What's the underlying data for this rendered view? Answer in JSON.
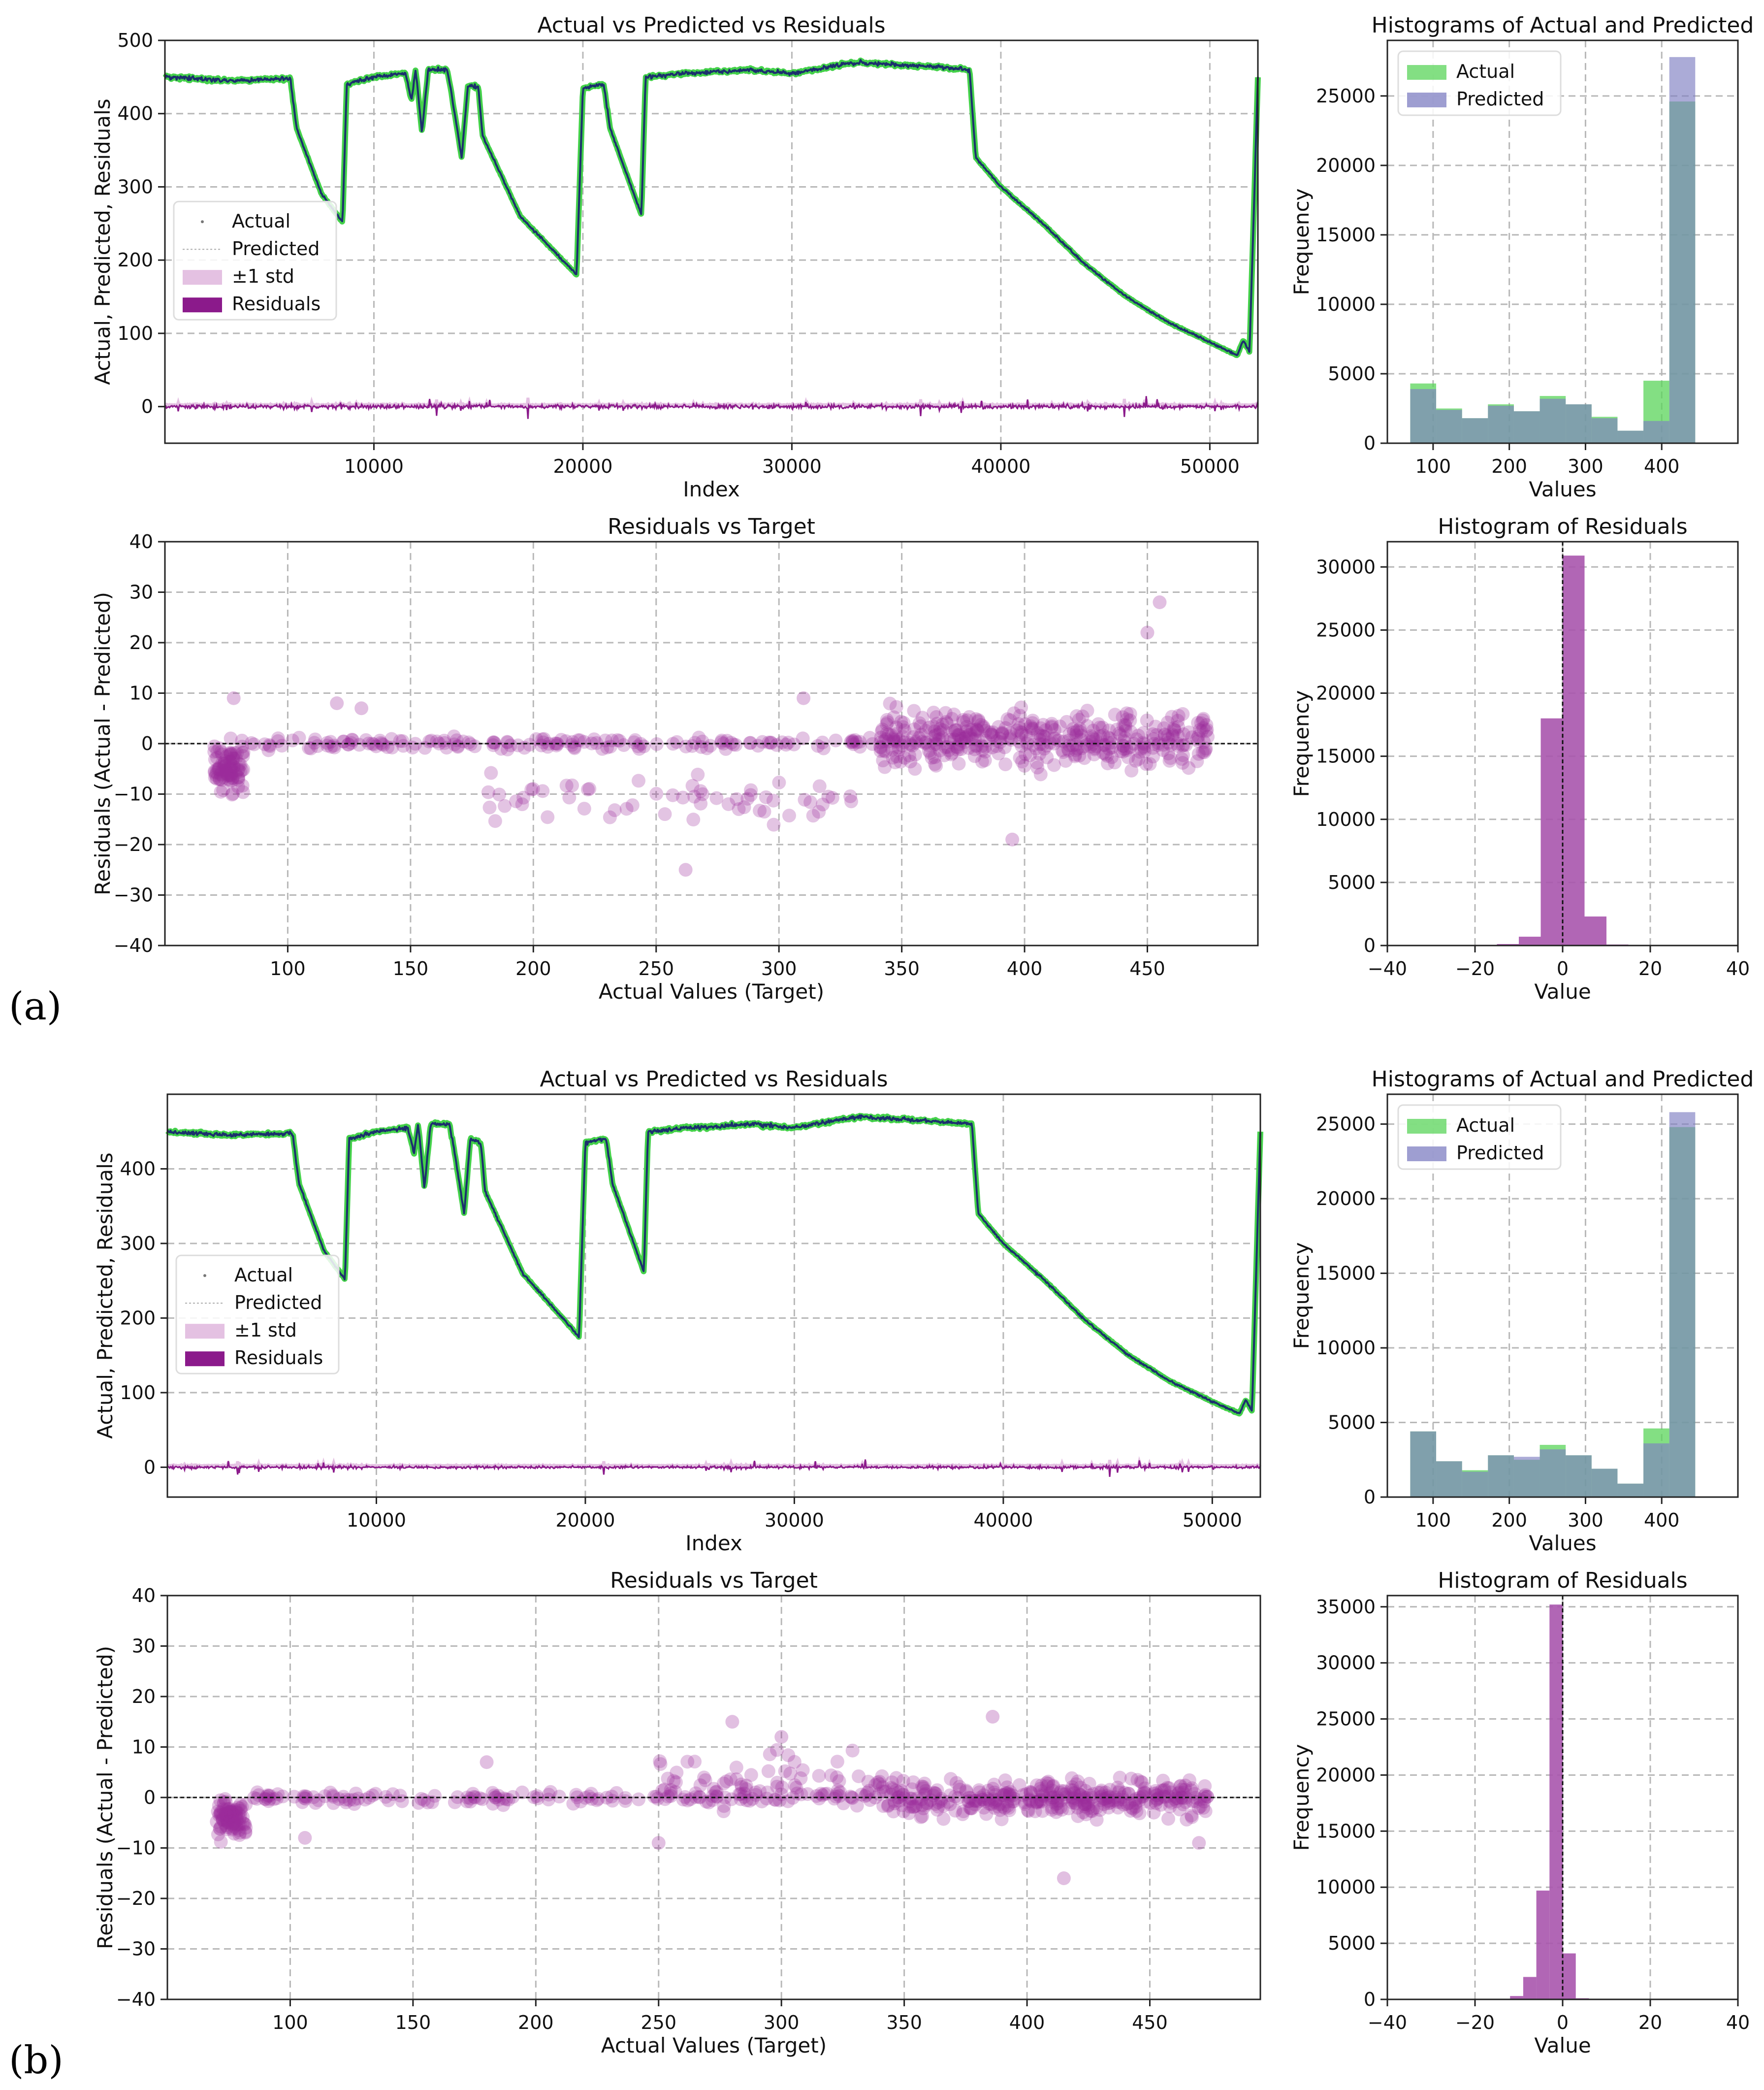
{
  "panel_labels": [
    "(a)",
    "(b)"
  ],
  "chart_data": [
    {
      "id": "a-series",
      "type": "line",
      "title": "Actual vs Predicted vs Residuals",
      "xlabel": "Index",
      "ylabel": "Actual, Predicted, Residuals",
      "xlim": [
        0,
        52300
      ],
      "ylim": [
        -50,
        500
      ],
      "xticks": [
        10000,
        20000,
        30000,
        40000,
        50000
      ],
      "yticks": [
        0,
        100,
        200,
        300,
        400,
        500
      ],
      "grid": true,
      "legend_position": "center-left",
      "legend": [
        "Actual",
        "Predicted",
        "±1 std",
        "Residuals"
      ],
      "colors": {
        "actual": "#44d14a",
        "predicted": "#1c2f6e",
        "std": "#e4c1e2",
        "residuals": "#8b1a8b"
      },
      "actual_curve": [
        [
          0,
          450
        ],
        [
          3000,
          445
        ],
        [
          6000,
          448
        ],
        [
          6300,
          380
        ],
        [
          7500,
          290
        ],
        [
          8500,
          252
        ],
        [
          8700,
          440
        ],
        [
          10000,
          450
        ],
        [
          11500,
          455
        ],
        [
          11800,
          420
        ],
        [
          12000,
          460
        ],
        [
          12300,
          375
        ],
        [
          12600,
          460
        ],
        [
          13500,
          460
        ],
        [
          13700,
          430
        ],
        [
          14200,
          340
        ],
        [
          14500,
          440
        ],
        [
          15000,
          435
        ],
        [
          15200,
          370
        ],
        [
          17000,
          260
        ],
        [
          19700,
          180
        ],
        [
          20000,
          435
        ],
        [
          21000,
          440
        ],
        [
          21300,
          380
        ],
        [
          22800,
          262
        ],
        [
          23000,
          450
        ],
        [
          25000,
          455
        ],
        [
          28000,
          460
        ],
        [
          30000,
          455
        ],
        [
          33000,
          470
        ],
        [
          36000,
          465
        ],
        [
          38500,
          460
        ],
        [
          38800,
          340
        ],
        [
          40000,
          300
        ],
        [
          42000,
          250
        ],
        [
          44000,
          195
        ],
        [
          46000,
          150
        ],
        [
          48000,
          115
        ],
        [
          50000,
          88
        ],
        [
          51300,
          70
        ],
        [
          51600,
          90
        ],
        [
          51900,
          75
        ],
        [
          52300,
          450
        ]
      ],
      "residual_noise_amplitude": 12
    },
    {
      "id": "a-hist-values",
      "type": "bar",
      "title": "Histograms of Actual and Predicted",
      "xlabel": "Values",
      "ylabel": "Frequency",
      "xlim": [
        40,
        500
      ],
      "ylim": [
        0,
        29000
      ],
      "xticks": [
        100,
        200,
        300,
        400
      ],
      "yticks": [
        0,
        5000,
        10000,
        15000,
        20000,
        25000
      ],
      "grid": true,
      "legend_position": "top-left",
      "bin_edges": [
        70,
        104,
        138,
        172,
        206,
        240,
        274,
        308,
        342,
        376,
        410,
        444,
        478
      ],
      "series": [
        {
          "name": "Actual",
          "color": "#5ad45a",
          "values": [
            4300,
            2500,
            1800,
            2800,
            2300,
            3400,
            2800,
            1900,
            900,
            4500,
            24600,
            0
          ]
        },
        {
          "name": "Predicted",
          "color": "#7e7ec2",
          "values": [
            3900,
            2400,
            1800,
            2700,
            2300,
            3200,
            2800,
            1800,
            900,
            1600,
            27800,
            0
          ]
        }
      ]
    },
    {
      "id": "a-scatter",
      "type": "scatter",
      "title": "Residuals vs Target",
      "xlabel": "Actual Values (Target)",
      "ylabel": "Residuals (Actual - Predicted)",
      "xlim": [
        50,
        495
      ],
      "ylim": [
        -40,
        40
      ],
      "xticks": [
        100,
        150,
        200,
        250,
        300,
        350,
        400,
        450
      ],
      "yticks": [
        -40,
        -30,
        -20,
        -10,
        0,
        10,
        20,
        30,
        40
      ],
      "grid": true,
      "zero_line": true,
      "color": "#9a2a9a",
      "bands": [
        {
          "x": [
            70,
            82
          ],
          "center": -5,
          "spread": 9,
          "n": 90
        },
        {
          "x": [
            85,
            340
          ],
          "center": 0,
          "spread": 2,
          "n": 160
        },
        {
          "x": [
            180,
            330
          ],
          "center": -11,
          "spread": 8,
          "n": 60
        },
        {
          "x": [
            340,
            475
          ],
          "center": 1,
          "spread": 9,
          "n": 420
        }
      ],
      "outliers": [
        [
          78,
          9
        ],
        [
          120,
          8
        ],
        [
          130,
          7
        ],
        [
          455,
          28
        ],
        [
          450,
          22
        ],
        [
          262,
          -25
        ],
        [
          310,
          9
        ],
        [
          395,
          -19
        ]
      ]
    },
    {
      "id": "a-hist-residuals",
      "type": "bar",
      "title": "Histogram of Residuals",
      "xlabel": "Value",
      "ylabel": "Frequency",
      "xlim": [
        -40,
        40
      ],
      "ylim": [
        0,
        32000
      ],
      "xticks": [
        -40,
        -20,
        0,
        20,
        40
      ],
      "yticks": [
        0,
        5000,
        10000,
        15000,
        20000,
        25000,
        30000
      ],
      "grid": true,
      "color": "#a855ad",
      "bin_edges": [
        -25,
        -20,
        -15,
        -10,
        -5,
        0,
        5,
        10,
        15
      ],
      "values": [
        20,
        60,
        120,
        700,
        18000,
        30900,
        2300,
        80
      ]
    },
    {
      "id": "b-series",
      "type": "line",
      "title": "Actual vs Predicted vs Residuals",
      "xlabel": "Index",
      "ylabel": "Actual, Predicted, Residuals",
      "xlim": [
        0,
        52300
      ],
      "ylim": [
        -40,
        500
      ],
      "xticks": [
        10000,
        20000,
        30000,
        40000,
        50000
      ],
      "yticks": [
        0,
        100,
        200,
        300,
        400
      ],
      "grid": true,
      "legend_position": "center-left",
      "legend": [
        "Actual",
        "Predicted",
        "±1 std",
        "Residuals"
      ],
      "colors": {
        "actual": "#44d14a",
        "predicted": "#1c2f6e",
        "std": "#e4c1e2",
        "residuals": "#8b1a8b"
      },
      "actual_curve": [
        [
          0,
          450
        ],
        [
          3000,
          445
        ],
        [
          6000,
          448
        ],
        [
          6300,
          380
        ],
        [
          7500,
          290
        ],
        [
          8500,
          252
        ],
        [
          8700,
          440
        ],
        [
          10000,
          450
        ],
        [
          11500,
          455
        ],
        [
          11800,
          420
        ],
        [
          12000,
          460
        ],
        [
          12300,
          375
        ],
        [
          12600,
          460
        ],
        [
          13500,
          460
        ],
        [
          13700,
          430
        ],
        [
          14200,
          340
        ],
        [
          14500,
          440
        ],
        [
          15000,
          435
        ],
        [
          15200,
          370
        ],
        [
          17000,
          260
        ],
        [
          19700,
          175
        ],
        [
          20000,
          435
        ],
        [
          21000,
          440
        ],
        [
          21300,
          380
        ],
        [
          22800,
          262
        ],
        [
          23000,
          450
        ],
        [
          25000,
          455
        ],
        [
          28000,
          460
        ],
        [
          30000,
          455
        ],
        [
          33000,
          470
        ],
        [
          36000,
          465
        ],
        [
          38500,
          460
        ],
        [
          38800,
          340
        ],
        [
          40000,
          300
        ],
        [
          42000,
          250
        ],
        [
          44000,
          195
        ],
        [
          46000,
          150
        ],
        [
          48000,
          115
        ],
        [
          50000,
          88
        ],
        [
          51300,
          72
        ],
        [
          51600,
          90
        ],
        [
          51900,
          75
        ],
        [
          52300,
          450
        ]
      ],
      "residual_noise_amplitude": 8
    },
    {
      "id": "b-hist-values",
      "type": "bar",
      "title": "Histograms of Actual and Predicted",
      "xlabel": "Values",
      "ylabel": "Frequency",
      "xlim": [
        40,
        500
      ],
      "ylim": [
        0,
        27000
      ],
      "xticks": [
        100,
        200,
        300,
        400
      ],
      "yticks": [
        0,
        5000,
        10000,
        15000,
        20000,
        25000
      ],
      "grid": true,
      "legend_position": "top-left",
      "bin_edges": [
        70,
        104,
        138,
        172,
        206,
        240,
        274,
        308,
        342,
        376,
        410,
        444,
        478
      ],
      "series": [
        {
          "name": "Actual",
          "color": "#5ad45a",
          "values": [
            4400,
            2400,
            1800,
            2800,
            2500,
            3500,
            2800,
            1900,
            900,
            4600,
            24800,
            0
          ]
        },
        {
          "name": "Predicted",
          "color": "#7e7ec2",
          "values": [
            4400,
            2400,
            1700,
            2800,
            2700,
            3200,
            2800,
            1900,
            900,
            3600,
            25800,
            0
          ]
        }
      ]
    },
    {
      "id": "b-scatter",
      "type": "scatter",
      "title": "Residuals vs Target",
      "xlabel": "Actual Values (Target)",
      "ylabel": "Residuals (Actual - Predicted)",
      "xlim": [
        50,
        495
      ],
      "ylim": [
        -40,
        40
      ],
      "xticks": [
        100,
        150,
        200,
        250,
        300,
        350,
        400,
        450
      ],
      "yticks": [
        -40,
        -30,
        -20,
        -10,
        0,
        10,
        20,
        30,
        40
      ],
      "grid": true,
      "zero_line": true,
      "color": "#9a2a9a",
      "bands": [
        {
          "x": [
            70,
            82
          ],
          "center": -4,
          "spread": 6,
          "n": 90
        },
        {
          "x": [
            85,
            340
          ],
          "center": 0,
          "spread": 2,
          "n": 160
        },
        {
          "x": [
            250,
            340
          ],
          "center": 3,
          "spread": 10,
          "n": 70
        },
        {
          "x": [
            340,
            475
          ],
          "center": 0,
          "spread": 6,
          "n": 380
        }
      ],
      "outliers": [
        [
          180,
          7
        ],
        [
          280,
          15
        ],
        [
          300,
          12
        ],
        [
          386,
          16
        ],
        [
          415,
          -16
        ],
        [
          106,
          -8
        ],
        [
          250,
          -9
        ],
        [
          470,
          -9
        ]
      ]
    },
    {
      "id": "b-hist-residuals",
      "type": "bar",
      "title": "Histogram of Residuals",
      "xlabel": "Value",
      "ylabel": "Frequency",
      "xlim": [
        -40,
        40
      ],
      "ylim": [
        0,
        36000
      ],
      "xticks": [
        -40,
        -20,
        0,
        20,
        40
      ],
      "yticks": [
        0,
        5000,
        10000,
        15000,
        20000,
        25000,
        30000,
        35000
      ],
      "grid": true,
      "color": "#a855ad",
      "bin_edges": [
        -12,
        -9,
        -6,
        -3,
        0,
        3,
        6
      ],
      "values": [
        300,
        2000,
        9700,
        35200,
        4100,
        100
      ]
    }
  ]
}
